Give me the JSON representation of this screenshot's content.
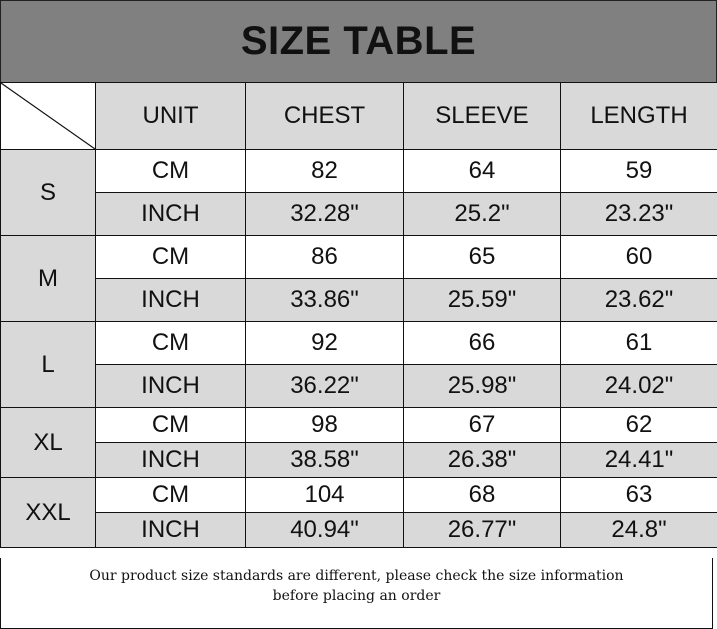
{
  "title": "SIZE TABLE",
  "headers": [
    "UNIT",
    "CHEST",
    "SLEEVE",
    "LENGTH"
  ],
  "sizes": [
    {
      "size": "S",
      "rows": [
        {
          "unit": "CM",
          "values": [
            "82",
            "64",
            "59"
          ]
        },
        {
          "unit": "INCH",
          "values": [
            "32.28\"",
            "25.2\"",
            "23.23\""
          ]
        }
      ]
    },
    {
      "size": "M",
      "rows": [
        {
          "unit": "CM",
          "values": [
            "86",
            "65",
            "60"
          ]
        },
        {
          "unit": "INCH",
          "values": [
            "33.86\"",
            "25.59\"",
            "23.62\""
          ]
        }
      ]
    },
    {
      "size": "L",
      "rows": [
        {
          "unit": "CM",
          "values": [
            "92",
            "66",
            "61"
          ]
        },
        {
          "unit": "INCH",
          "values": [
            "36.22\"",
            "25.98\"",
            "24.02\""
          ]
        }
      ]
    },
    {
      "size": "XL",
      "rows": [
        {
          "unit": "CM",
          "values": [
            "98",
            "67",
            "62"
          ]
        },
        {
          "unit": "INCH",
          "values": [
            "38.58\"",
            "26.38\"",
            "24.41\""
          ]
        }
      ]
    },
    {
      "size": "XXL",
      "rows": [
        {
          "unit": "CM",
          "values": [
            "104",
            "68",
            "63"
          ]
        },
        {
          "unit": "INCH",
          "values": [
            "40.94\"",
            "26.77\"",
            "24.8\""
          ]
        }
      ]
    }
  ],
  "footer": {
    "line1": "Our product size standards are different, please check the size information",
    "line2": "before placing an order"
  },
  "colors": {
    "title_bg": "#808080",
    "shaded_cell": "#d9d9d9",
    "white_cell": "#ffffff"
  }
}
